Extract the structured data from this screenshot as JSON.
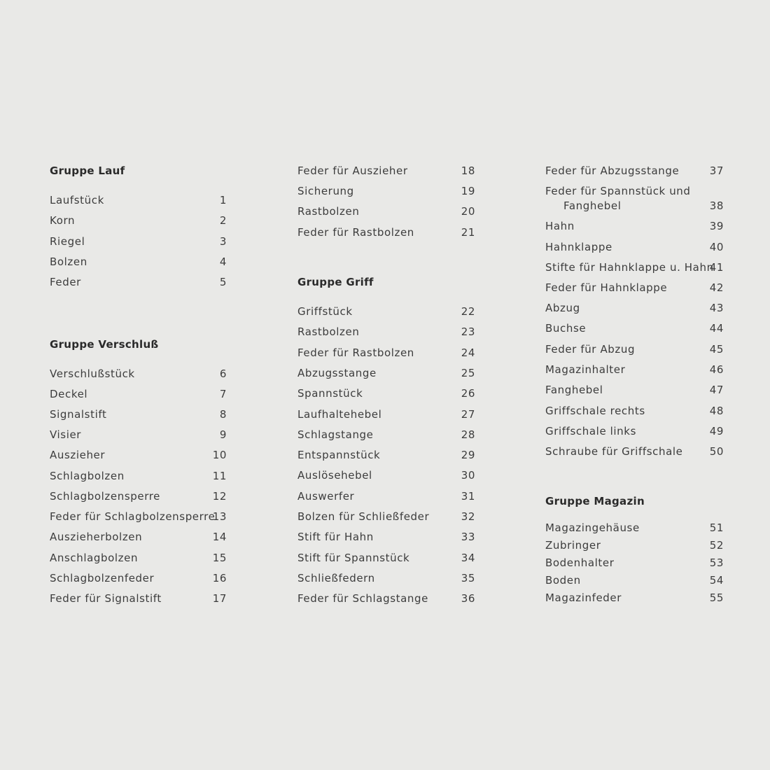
{
  "columns": [
    {
      "sections": [
        {
          "heading": "Gruppe Lauf",
          "items": [
            {
              "name": "Laufstück",
              "num": "1"
            },
            {
              "name": "Korn",
              "num": "2"
            },
            {
              "name": "Riegel",
              "num": "3"
            },
            {
              "name": "Bolzen",
              "num": "4"
            },
            {
              "name": "Feder",
              "num": "5"
            }
          ]
        },
        {
          "heading": "Gruppe Verschluß",
          "items": [
            {
              "name": "Verschlußstück",
              "num": "6"
            },
            {
              "name": "Deckel",
              "num": "7"
            },
            {
              "name": "Signalstift",
              "num": "8"
            },
            {
              "name": "Visier",
              "num": "9"
            },
            {
              "name": "Auszieher",
              "num": "10"
            },
            {
              "name": "Schlagbolzen",
              "num": "11"
            },
            {
              "name": "Schlagbolzensperre",
              "num": "12"
            },
            {
              "name": "Feder für Schlagbolzensperre",
              "num": "13"
            },
            {
              "name": "Auszieherbolzen",
              "num": "14"
            },
            {
              "name": "Anschlagbolzen",
              "num": "15"
            },
            {
              "name": "Schlagbolzenfeder",
              "num": "16"
            },
            {
              "name": "Feder für Signalstift",
              "num": "17"
            }
          ]
        }
      ]
    },
    {
      "sections": [
        {
          "heading": "",
          "items": [
            {
              "name": "Feder für Auszieher",
              "num": "18"
            },
            {
              "name": "Sicherung",
              "num": "19"
            },
            {
              "name": "Rastbolzen",
              "num": "20"
            },
            {
              "name": "Feder für Rastbolzen",
              "num": "21"
            }
          ]
        },
        {
          "heading": "Gruppe Griff",
          "items": [
            {
              "name": "Griffstück",
              "num": "22"
            },
            {
              "name": "Rastbolzen",
              "num": "23"
            },
            {
              "name": "Feder für Rastbolzen",
              "num": "24"
            },
            {
              "name": "Abzugsstange",
              "num": "25"
            },
            {
              "name": "Spannstück",
              "num": "26"
            },
            {
              "name": "Laufhaltehebel",
              "num": "27"
            },
            {
              "name": "Schlagstange",
              "num": "28"
            },
            {
              "name": "Entspannstück",
              "num": "29"
            },
            {
              "name": "Auslösehebel",
              "num": "30"
            },
            {
              "name": "Auswerfer",
              "num": "31"
            },
            {
              "name": "Bolzen für Schließfeder",
              "num": "32"
            },
            {
              "name": "Stift für Hahn",
              "num": "33"
            },
            {
              "name": "Stift für Spannstück",
              "num": "34"
            },
            {
              "name": "Schließfedern",
              "num": "35"
            },
            {
              "name": "Feder für Schlagstange",
              "num": "36"
            }
          ]
        }
      ]
    },
    {
      "sections": [
        {
          "heading": "",
          "items": [
            {
              "name": "Feder für Abzugsstange",
              "num": "37"
            },
            {
              "name": "Feder für Spannstück und",
              "name2": "Fanghebel",
              "num": "38"
            },
            {
              "name": "Hahn",
              "num": "39"
            },
            {
              "name": "Hahnklappe",
              "num": "40"
            },
            {
              "name": "Stifte für Hahnklappe u. Hahn",
              "num": "41"
            },
            {
              "name": "Feder für Hahnklappe",
              "num": "42"
            },
            {
              "name": "Abzug",
              "num": "43"
            },
            {
              "name": "Buchse",
              "num": "44"
            },
            {
              "name": "Feder für Abzug",
              "num": "45"
            },
            {
              "name": "Magazinhalter",
              "num": "46"
            },
            {
              "name": "Fanghebel",
              "num": "47"
            },
            {
              "name": "Griffschale rechts",
              "num": "48"
            },
            {
              "name": "Griffschale links",
              "num": "49"
            },
            {
              "name": "Schraube für Griffschale",
              "num": "50"
            }
          ]
        },
        {
          "heading": "Gruppe Magazin",
          "items": [
            {
              "name": "Magazingehäuse",
              "num": "51"
            },
            {
              "name": "Zubringer",
              "num": "52"
            },
            {
              "name": "Bodenhalter",
              "num": "53"
            },
            {
              "name": "Boden",
              "num": "54"
            },
            {
              "name": "Magazinfeder",
              "num": "55"
            }
          ]
        }
      ]
    }
  ]
}
